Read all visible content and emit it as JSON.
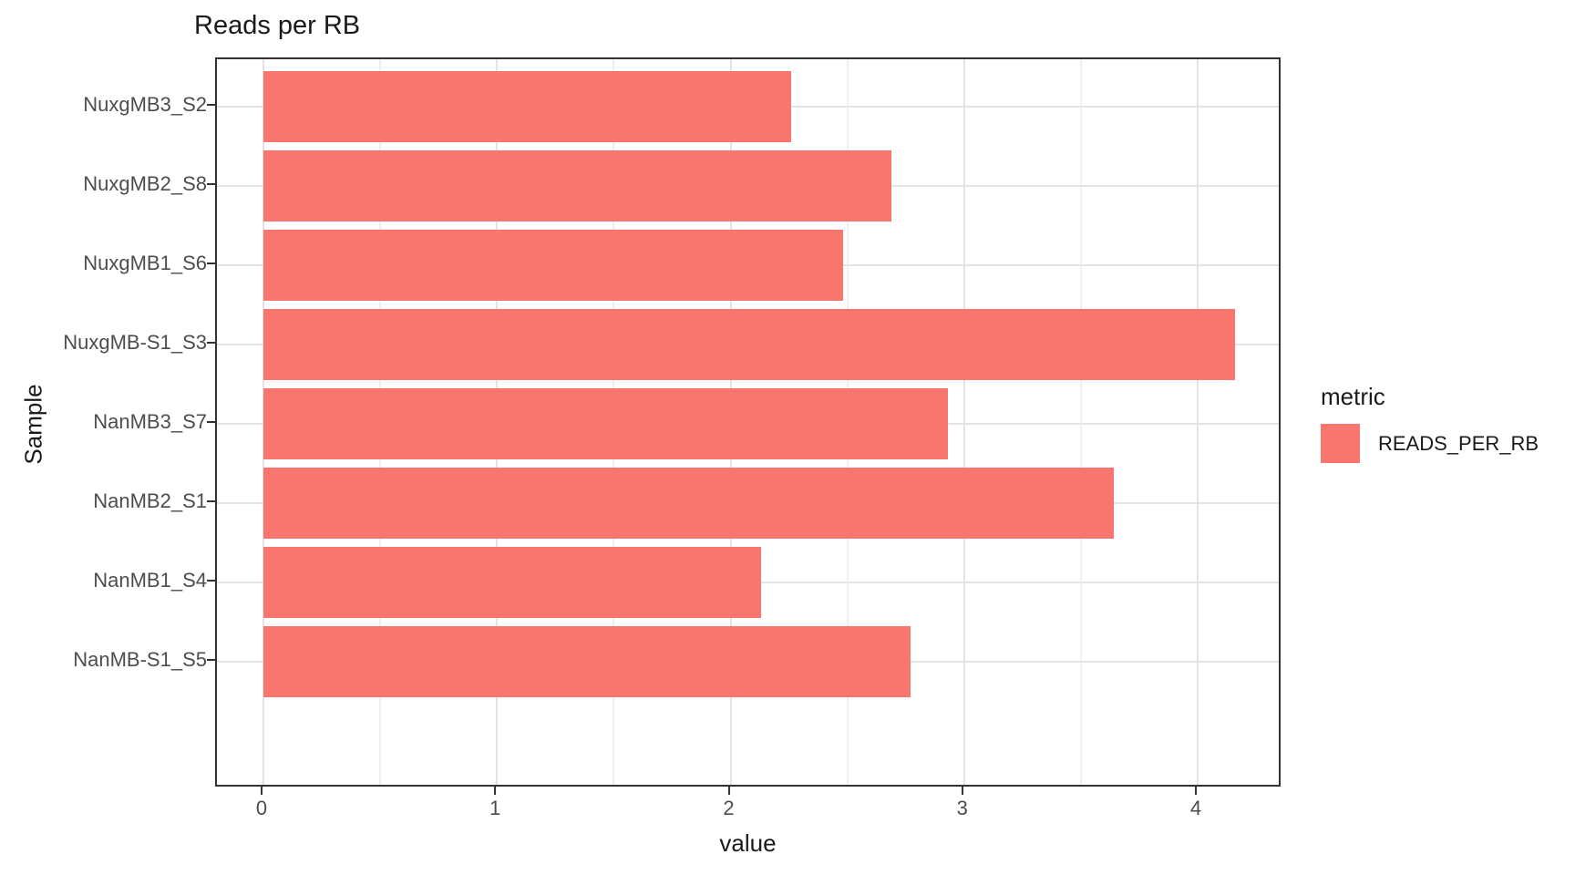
{
  "chart_data": {
    "type": "bar",
    "orientation": "horizontal",
    "title": "Reads per RB",
    "xlabel": "value",
    "ylabel": "Sample",
    "categories": [
      "NuxgMB3_S2",
      "NuxgMB2_S8",
      "NuxgMB1_S6",
      "NuxgMB-S1_S3",
      "NanMB3_S7",
      "NanMB2_S1",
      "NanMB1_S4",
      "NanMB-S1_S5"
    ],
    "series": [
      {
        "name": "READS_PER_RB",
        "values": [
          2.26,
          2.69,
          2.48,
          4.16,
          2.93,
          3.64,
          2.13,
          2.77
        ]
      }
    ],
    "xlim": [
      -0.2,
      4.36
    ],
    "x_major_ticks": [
      0,
      1,
      2,
      3,
      4
    ],
    "x_minor_ticks": [
      0.5,
      1.5,
      2.5,
      3.5
    ],
    "grid": true,
    "legend": {
      "title": "metric",
      "position": "right",
      "entries": [
        {
          "label": "READS_PER_RB",
          "color": "#F8766D"
        }
      ]
    },
    "colors": {
      "bar_fill": "#F8766D",
      "panel_border": "#333333",
      "grid_major": "#e4e4e4",
      "grid_minor": "#efefef",
      "tick_label": "#4d4d4d",
      "text": "#1a1a1a"
    }
  }
}
